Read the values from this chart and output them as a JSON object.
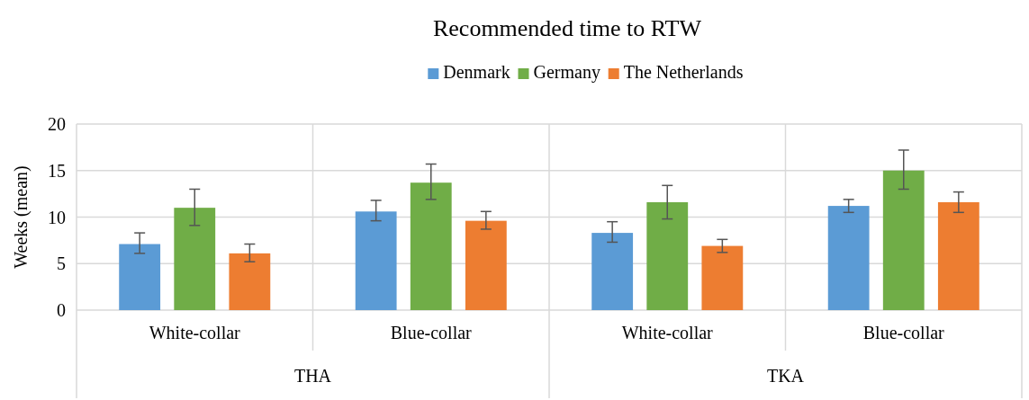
{
  "chart_data": {
    "type": "bar",
    "title": "Recommended time to RTW",
    "ylabel": "Weeks (mean)",
    "categories": [
      "White-collar",
      "Blue-collar",
      "White-collar",
      "Blue-collar"
    ],
    "annotations": [
      "THA",
      "TKA"
    ],
    "series": [
      {
        "name": "Denmark",
        "color": "#5b9bd5",
        "values": [
          7.1,
          10.6,
          8.3,
          11.2
        ],
        "errors": [
          [
            6.1,
            8.3
          ],
          [
            9.6,
            11.8
          ],
          [
            7.3,
            9.5
          ],
          [
            10.5,
            11.9
          ]
        ]
      },
      {
        "name": "Germany",
        "color": "#70ad47",
        "values": [
          11.0,
          13.7,
          11.6,
          15.0
        ],
        "errors": [
          [
            9.1,
            13.0
          ],
          [
            11.9,
            15.7
          ],
          [
            9.8,
            13.4
          ],
          [
            13.0,
            17.2
          ]
        ]
      },
      {
        "name": "The Netherlands",
        "color": "#ed7d31",
        "values": [
          6.1,
          9.6,
          6.9,
          11.6
        ],
        "errors": [
          [
            5.2,
            7.1
          ],
          [
            8.7,
            10.6
          ],
          [
            6.2,
            7.6
          ],
          [
            10.5,
            12.7
          ]
        ]
      }
    ],
    "ylim": [
      0,
      20
    ],
    "yticks": [
      0,
      5,
      10,
      15,
      20
    ],
    "grid": "y",
    "legend": "top"
  }
}
